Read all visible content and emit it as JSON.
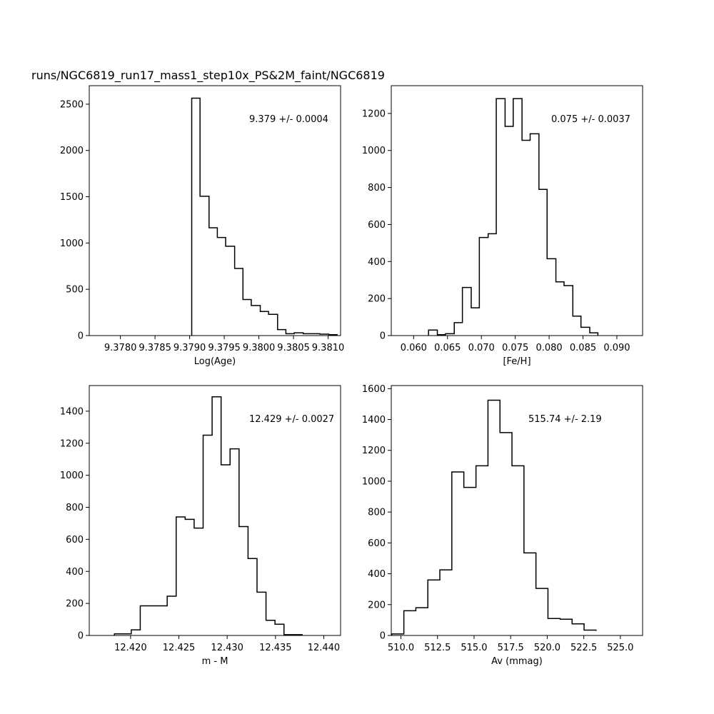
{
  "figure": {
    "title": "runs/NGC6819_run17_mass1_step10x_PS&2M_faint/NGC6819",
    "line_color": "#000000",
    "background": "#ffffff"
  },
  "chart_data": [
    {
      "type": "histogram",
      "xlabel": "Log(Age)",
      "ylabel": "",
      "annotation": "9.379 +/- 0.0004",
      "xlim": [
        9.37755,
        9.38118
      ],
      "ylim": [
        0,
        2700
      ],
      "x_ticks": [
        9.378,
        9.3785,
        9.379,
        9.3795,
        9.38,
        9.3805,
        9.381
      ],
      "x_tick_labels": [
        "9.3780",
        "9.3785",
        "9.3790",
        "9.3795",
        "9.3800",
        "9.3805",
        "9.3810"
      ],
      "y_ticks": [
        0,
        500,
        1000,
        1500,
        2000,
        2500
      ],
      "y_tick_labels": [
        "0",
        "500",
        "1000",
        "1500",
        "2000",
        "2500"
      ],
      "bin_edges": [
        9.37903,
        9.37915,
        9.37928,
        9.3794,
        9.37952,
        9.37965,
        9.37977,
        9.37989,
        9.38002,
        9.38014,
        9.38027,
        9.38039,
        9.38051,
        9.38064,
        9.38076,
        9.38088,
        9.38101,
        9.38113
      ],
      "counts": [
        2565,
        1505,
        1165,
        1060,
        965,
        725,
        390,
        325,
        260,
        230,
        65,
        20,
        30,
        20,
        20,
        15,
        10
      ]
    },
    {
      "type": "histogram",
      "xlabel": "[Fe/H]",
      "ylabel": "",
      "annotation": "0.075 +/- 0.0037",
      "xlim": [
        0.0567,
        0.0938
      ],
      "ylim": [
        0,
        1350
      ],
      "x_ticks": [
        0.06,
        0.065,
        0.07,
        0.075,
        0.08,
        0.085,
        0.09
      ],
      "x_tick_labels": [
        "0.060",
        "0.065",
        "0.070",
        "0.075",
        "0.080",
        "0.085",
        "0.090"
      ],
      "y_ticks": [
        0,
        200,
        400,
        600,
        800,
        1000,
        1200
      ],
      "y_tick_labels": [
        "0",
        "200",
        "400",
        "600",
        "800",
        "1000",
        "1200"
      ],
      "bin_edges": [
        0.0622,
        0.0635,
        0.0647,
        0.066,
        0.0672,
        0.0685,
        0.0697,
        0.071,
        0.0722,
        0.0735,
        0.0747,
        0.076,
        0.0772,
        0.0785,
        0.0797,
        0.081,
        0.0822,
        0.0835,
        0.0847,
        0.086,
        0.0872
      ],
      "counts": [
        30,
        5,
        10,
        70,
        260,
        150,
        530,
        550,
        1280,
        1130,
        1280,
        1055,
        1090,
        790,
        415,
        290,
        270,
        105,
        45,
        15
      ]
    },
    {
      "type": "histogram",
      "xlabel": "m - M",
      "ylabel": "",
      "annotation": "12.429 +/- 0.0027",
      "xlim": [
        12.41572,
        12.44174
      ],
      "ylim": [
        0,
        1560
      ],
      "x_ticks": [
        12.42,
        12.425,
        12.43,
        12.435,
        12.44
      ],
      "x_tick_labels": [
        "12.420",
        "12.425",
        "12.430",
        "12.435",
        "12.440"
      ],
      "y_ticks": [
        0,
        200,
        400,
        600,
        800,
        1000,
        1200,
        1400
      ],
      "y_tick_labels": [
        "0",
        "200",
        "400",
        "600",
        "800",
        "1000",
        "1200",
        "1400"
      ],
      "bin_edges": [
        12.41833,
        12.42007,
        12.421,
        12.42193,
        12.42379,
        12.42472,
        12.42565,
        12.42658,
        12.42751,
        12.42844,
        12.42937,
        12.4303,
        12.43123,
        12.43216,
        12.43309,
        12.43402,
        12.43495,
        12.43588,
        12.43776
      ],
      "counts": [
        10,
        35,
        185,
        185,
        245,
        740,
        725,
        670,
        1250,
        1490,
        1065,
        1165,
        680,
        480,
        270,
        95,
        70,
        5
      ]
    },
    {
      "type": "histogram",
      "xlabel": "Av (mmag)",
      "ylabel": "",
      "annotation": "515.74 +/- 2.19",
      "xlim": [
        509.34,
        526.52
      ],
      "ylim": [
        0,
        1620
      ],
      "x_ticks": [
        510,
        512.5,
        515,
        517.5,
        520,
        522.5,
        525
      ],
      "x_tick_labels": [
        "510.0",
        "512.5",
        "515.0",
        "517.5",
        "520.0",
        "522.5",
        "525.0"
      ],
      "y_ticks": [
        0,
        200,
        400,
        600,
        800,
        1000,
        1200,
        1400,
        1600
      ],
      "y_tick_labels": [
        "0",
        "200",
        "400",
        "600",
        "800",
        "1000",
        "1200",
        "1400",
        "1600"
      ],
      "bin_edges": [
        509.37,
        510.2,
        511.02,
        511.84,
        512.66,
        513.48,
        514.3,
        515.13,
        515.95,
        516.77,
        517.59,
        518.41,
        519.23,
        520.05,
        520.88,
        521.7,
        522.52,
        523.34
      ],
      "counts": [
        10,
        160,
        180,
        360,
        425,
        1060,
        960,
        1100,
        1525,
        1315,
        1100,
        535,
        305,
        110,
        105,
        75,
        35,
        30
      ]
    }
  ]
}
